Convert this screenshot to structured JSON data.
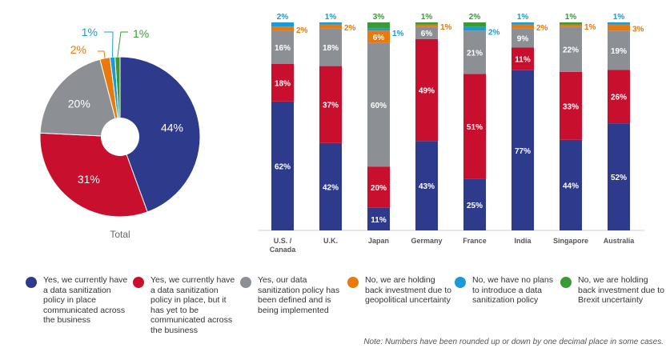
{
  "colors": {
    "yes_communicated": "#2e3a8c",
    "yes_not_communicated": "#c8102e",
    "being_implemented": "#8c8f94",
    "holding_geopolitical": "#e8790c",
    "no_plans": "#1b9ad6",
    "holding_brexit": "#3a9b35"
  },
  "chart_data": [
    {
      "type": "pie",
      "label": "Total",
      "slices": [
        {
          "key": "yes_communicated",
          "value": 44,
          "label": "44%"
        },
        {
          "key": "yes_not_communicated",
          "value": 31,
          "label": "31%"
        },
        {
          "key": "being_implemented",
          "value": 20,
          "label": "20%"
        },
        {
          "key": "holding_geopolitical",
          "value": 2,
          "label": "2%"
        },
        {
          "key": "no_plans",
          "value": 1,
          "label": "1%"
        },
        {
          "key": "holding_brexit",
          "value": 1,
          "label": "1%"
        }
      ]
    },
    {
      "type": "bar",
      "stacked": true,
      "categories": [
        "U.S. / Canada",
        "U.K.",
        "Japan",
        "Germany",
        "France",
        "India",
        "Singapore",
        "Australia"
      ],
      "series": [
        {
          "key": "yes_communicated",
          "values": [
            62,
            42,
            11,
            43,
            25,
            77,
            44,
            52
          ]
        },
        {
          "key": "yes_not_communicated",
          "values": [
            18,
            37,
            20,
            49,
            51,
            11,
            33,
            26
          ]
        },
        {
          "key": "being_implemented",
          "values": [
            16,
            18,
            60,
            6,
            21,
            9,
            22,
            19
          ]
        },
        {
          "key": "holding_geopolitical",
          "values": [
            2,
            2,
            6,
            1,
            0,
            2,
            1,
            3
          ]
        },
        {
          "key": "no_plans",
          "values": [
            2,
            1,
            1,
            0,
            2,
            1,
            0,
            1
          ]
        },
        {
          "key": "holding_brexit",
          "values": [
            0,
            0,
            3,
            1,
            2,
            0,
            1,
            0
          ]
        }
      ]
    }
  ],
  "legend": [
    {
      "key": "yes_communicated",
      "text": "Yes, we currently have a data sanitization policy in place communicated across the business"
    },
    {
      "key": "yes_not_communicated",
      "text": "Yes, we currently have a data sanitization policy in place, but it has yet to be communicated across the business"
    },
    {
      "key": "being_implemented",
      "text": "Yes, our data sanitization policy has been defined and is being implemented"
    },
    {
      "key": "holding_geopolitical",
      "text": "No, we are holding back investment due to geopolitical uncertainty"
    },
    {
      "key": "no_plans",
      "text": "No, we have no plans to introduce a data sanitization policy"
    },
    {
      "key": "holding_brexit",
      "text": "No, we are holding back investment due to Brexit uncertainty"
    }
  ],
  "note": "Note: Numbers have been rounded up or down by one decimal place in some cases."
}
